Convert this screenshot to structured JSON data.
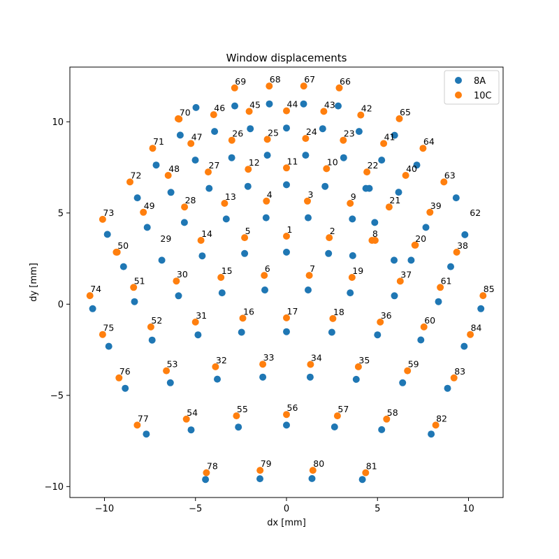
{
  "chart_data": {
    "type": "scatter",
    "title": "Window displacements",
    "xlabel": "dx [mm]",
    "ylabel": "dy [mm]",
    "xlim": [
      -11.9,
      11.9
    ],
    "ylim": [
      -10.6,
      13.0
    ],
    "xticks": [
      -10,
      -5,
      0,
      5,
      10
    ],
    "yticks": [
      -10,
      -5,
      0,
      5,
      10
    ],
    "xtick_labels": [
      "−10",
      "−5",
      "0",
      "5",
      "10"
    ],
    "ytick_labels": [
      "−10",
      "−5",
      "0",
      "5",
      "10"
    ],
    "grid": false,
    "legend_position": "top-right",
    "series": [
      {
        "name": "8A",
        "color": "#1f77b4",
        "points": [
          [
            0.0,
            2.85
          ],
          [
            2.31,
            2.78
          ],
          [
            1.19,
            4.74
          ],
          [
            -1.12,
            4.74
          ],
          [
            -2.3,
            2.78
          ],
          [
            -1.19,
            0.78
          ],
          [
            1.19,
            0.78
          ],
          [
            3.5,
            0.62
          ],
          [
            3.64,
            2.66
          ],
          [
            4.55,
            6.35
          ],
          [
            2.12,
            6.46
          ],
          [
            0.0,
            6.55
          ],
          [
            -2.12,
            6.46
          ],
          [
            -3.31,
            4.67
          ],
          [
            -4.63,
            2.65
          ],
          [
            -3.54,
            0.62
          ],
          [
            -2.47,
            -1.54
          ],
          [
            0.0,
            -1.51
          ],
          [
            2.49,
            -1.54
          ],
          [
            4.85,
            4.48
          ],
          [
            5.91,
            2.41
          ],
          [
            3.62,
            4.67
          ],
          [
            4.36,
            6.35
          ],
          [
            3.14,
            8.03
          ],
          [
            1.05,
            8.17
          ],
          [
            -1.05,
            8.17
          ],
          [
            -3.01,
            8.03
          ],
          [
            -4.25,
            6.35
          ],
          [
            -5.61,
            4.48
          ],
          [
            -5.93,
            0.46
          ],
          [
            -4.86,
            -1.68
          ],
          [
            -3.8,
            -4.11
          ],
          [
            -1.3,
            -4.0
          ],
          [
            1.3,
            -4.0
          ],
          [
            3.83,
            -4.12
          ],
          [
            5.0,
            -1.68
          ],
          [
            5.93,
            0.46
          ],
          [
            6.85,
            2.41
          ],
          [
            7.66,
            4.21
          ],
          [
            6.16,
            6.14
          ],
          [
            5.23,
            7.9
          ],
          [
            3.99,
            9.47
          ],
          [
            1.99,
            9.62
          ],
          [
            0.0,
            9.66
          ],
          [
            -1.99,
            9.62
          ],
          [
            -3.95,
            9.47
          ],
          [
            -5.84,
            9.27
          ],
          [
            -5.01,
            7.9
          ],
          [
            -6.35,
            6.13
          ],
          [
            -7.65,
            4.21
          ],
          [
            -6.85,
            2.41
          ],
          [
            -8.35,
            0.14
          ],
          [
            -7.38,
            -1.97
          ],
          [
            -6.38,
            -4.31
          ],
          [
            -5.24,
            -6.89
          ],
          [
            -2.64,
            -6.74
          ],
          [
            0.0,
            -6.63
          ],
          [
            2.64,
            -6.73
          ],
          [
            5.23,
            -6.88
          ],
          [
            6.38,
            -4.31
          ],
          [
            7.38,
            -1.96
          ],
          [
            8.35,
            0.14
          ],
          [
            9.02,
            2.06
          ],
          [
            9.32,
            5.83
          ],
          [
            7.16,
            7.63
          ],
          [
            5.94,
            9.26
          ],
          [
            2.84,
            10.87
          ],
          [
            0.94,
            10.98
          ],
          [
            -0.94,
            10.98
          ],
          [
            -2.84,
            10.87
          ],
          [
            -4.97,
            10.78
          ],
          [
            -7.16,
            7.63
          ],
          [
            -8.19,
            5.83
          ],
          [
            -9.84,
            3.83
          ],
          [
            -8.95,
            2.06
          ],
          [
            -10.65,
            -0.25
          ],
          [
            -9.76,
            -2.31
          ],
          [
            -8.86,
            -4.61
          ],
          [
            -7.7,
            -7.12
          ],
          [
            -4.45,
            -9.61
          ],
          [
            -1.46,
            -9.57
          ],
          [
            1.4,
            -9.56
          ],
          [
            4.17,
            -9.61
          ],
          [
            7.95,
            -7.12
          ],
          [
            8.85,
            -4.61
          ],
          [
            9.76,
            -2.31
          ],
          [
            10.68,
            -0.25
          ],
          [
            9.8,
            3.81
          ]
        ]
      },
      {
        "name": "10C",
        "color": "#ff7f0e",
        "points": [
          [
            0.0,
            3.73
          ],
          [
            2.35,
            3.65
          ],
          [
            1.15,
            5.65
          ],
          [
            -1.1,
            5.65
          ],
          [
            -2.3,
            3.65
          ],
          [
            -1.22,
            1.58
          ],
          [
            1.25,
            1.58
          ],
          [
            3.6,
            1.47
          ],
          [
            4.7,
            3.5
          ],
          [
            3.5,
            5.53
          ],
          [
            2.2,
            7.43
          ],
          [
            0.0,
            7.47
          ],
          [
            -2.1,
            7.4
          ],
          [
            -3.4,
            5.53
          ],
          [
            -4.7,
            3.5
          ],
          [
            -3.6,
            1.47
          ],
          [
            -2.4,
            -0.77
          ],
          [
            0.0,
            -0.75
          ],
          [
            2.55,
            -0.79
          ],
          [
            4.87,
            3.5
          ],
          [
            7.05,
            3.24
          ],
          [
            5.64,
            5.33
          ],
          [
            4.42,
            7.25
          ],
          [
            3.12,
            8.99
          ],
          [
            1.05,
            9.09
          ],
          [
            -1.05,
            9.04
          ],
          [
            -3.0,
            8.99
          ],
          [
            -4.3,
            7.25
          ],
          [
            -5.6,
            5.33
          ],
          [
            -6.05,
            1.27
          ],
          [
            -5.0,
            -0.98
          ],
          [
            -3.9,
            -3.43
          ],
          [
            -1.3,
            -3.29
          ],
          [
            1.32,
            -3.3
          ],
          [
            3.95,
            -3.43
          ],
          [
            5.15,
            -0.98
          ],
          [
            6.25,
            1.26
          ],
          [
            7.08,
            3.24
          ],
          [
            7.88,
            5.04
          ],
          [
            6.55,
            7.06
          ],
          [
            5.34,
            8.81
          ],
          [
            4.08,
            10.37
          ],
          [
            2.05,
            10.57
          ],
          [
            0.0,
            10.6
          ],
          [
            -2.05,
            10.57
          ],
          [
            -4.0,
            10.39
          ],
          [
            -5.95,
            10.17
          ],
          [
            -5.25,
            8.81
          ],
          [
            -6.5,
            7.06
          ],
          [
            -7.86,
            5.04
          ],
          [
            -9.3,
            2.85
          ],
          [
            -8.4,
            0.92
          ],
          [
            -7.45,
            -1.25
          ],
          [
            -6.6,
            -3.65
          ],
          [
            -5.5,
            -6.3
          ],
          [
            -2.75,
            -6.12
          ],
          [
            0.0,
            -6.05
          ],
          [
            2.8,
            -6.12
          ],
          [
            5.5,
            -6.3
          ],
          [
            6.65,
            -3.65
          ],
          [
            7.55,
            -1.25
          ],
          [
            8.45,
            0.92
          ],
          [
            9.35,
            2.85
          ],
          [
            8.65,
            6.7
          ],
          [
            7.5,
            8.55
          ],
          [
            6.2,
            10.17
          ],
          [
            2.9,
            11.86
          ],
          [
            0.95,
            11.96
          ],
          [
            -0.95,
            11.96
          ],
          [
            -2.85,
            11.86
          ],
          [
            -5.9,
            10.15
          ],
          [
            -7.35,
            8.55
          ],
          [
            -8.6,
            6.7
          ],
          [
            -10.1,
            4.65
          ],
          [
            -9.35,
            2.85
          ],
          [
            -10.8,
            0.47
          ],
          [
            -10.1,
            -1.66
          ],
          [
            -9.2,
            -4.04
          ],
          [
            -8.2,
            -6.63
          ],
          [
            -4.4,
            -9.24
          ],
          [
            -1.45,
            -9.11
          ],
          [
            1.45,
            -9.11
          ],
          [
            4.35,
            -9.24
          ],
          [
            8.2,
            -6.63
          ],
          [
            9.2,
            -4.04
          ],
          [
            10.1,
            -1.66
          ],
          [
            10.8,
            0.47
          ]
        ]
      }
    ],
    "annotations": [
      {
        "text": "1",
        "x": 0.0,
        "y": 3.73
      },
      {
        "text": "2",
        "x": 2.35,
        "y": 3.65
      },
      {
        "text": "3",
        "x": 1.15,
        "y": 5.65
      },
      {
        "text": "4",
        "x": -1.1,
        "y": 5.65
      },
      {
        "text": "5",
        "x": -2.3,
        "y": 3.65
      },
      {
        "text": "6",
        "x": -1.22,
        "y": 1.58
      },
      {
        "text": "7",
        "x": 1.25,
        "y": 1.58
      },
      {
        "text": "8",
        "x": 4.7,
        "y": 3.5
      },
      {
        "text": "9",
        "x": 3.5,
        "y": 5.53
      },
      {
        "text": "10",
        "x": 2.2,
        "y": 7.43
      },
      {
        "text": "11",
        "x": 0.0,
        "y": 7.47
      },
      {
        "text": "12",
        "x": -2.1,
        "y": 7.4
      },
      {
        "text": "13",
        "x": -3.4,
        "y": 5.53
      },
      {
        "text": "14",
        "x": -4.7,
        "y": 3.5
      },
      {
        "text": "15",
        "x": -3.6,
        "y": 1.47
      },
      {
        "text": "16",
        "x": -2.4,
        "y": -0.77
      },
      {
        "text": "17",
        "x": 0.0,
        "y": -0.75
      },
      {
        "text": "18",
        "x": 2.55,
        "y": -0.79
      },
      {
        "text": "19",
        "x": 3.6,
        "y": 1.47
      },
      {
        "text": "20",
        "x": 7.05,
        "y": 3.24
      },
      {
        "text": "21",
        "x": 5.64,
        "y": 5.33
      },
      {
        "text": "22",
        "x": 4.42,
        "y": 7.25
      },
      {
        "text": "23",
        "x": 3.12,
        "y": 8.99
      },
      {
        "text": "24",
        "x": 1.05,
        "y": 9.09
      },
      {
        "text": "25",
        "x": -1.05,
        "y": 9.04
      },
      {
        "text": "26",
        "x": -3.0,
        "y": 8.99
      },
      {
        "text": "27",
        "x": -4.3,
        "y": 7.25
      },
      {
        "text": "28",
        "x": -5.6,
        "y": 5.33
      },
      {
        "text": "29",
        "x": -6.95,
        "y": 3.24
      },
      {
        "text": "30",
        "x": -6.05,
        "y": 1.27
      },
      {
        "text": "31",
        "x": -5.0,
        "y": -0.98
      },
      {
        "text": "32",
        "x": -3.9,
        "y": -3.43
      },
      {
        "text": "33",
        "x": -1.3,
        "y": -3.29
      },
      {
        "text": "34",
        "x": 1.32,
        "y": -3.3
      },
      {
        "text": "35",
        "x": 3.95,
        "y": -3.43
      },
      {
        "text": "36",
        "x": 5.15,
        "y": -0.98
      },
      {
        "text": "37",
        "x": 6.25,
        "y": 1.26
      },
      {
        "text": "38",
        "x": 9.35,
        "y": 2.85
      },
      {
        "text": "39",
        "x": 7.88,
        "y": 5.04
      },
      {
        "text": "40",
        "x": 6.55,
        "y": 7.06
      },
      {
        "text": "41",
        "x": 5.34,
        "y": 8.81
      },
      {
        "text": "42",
        "x": 4.08,
        "y": 10.37
      },
      {
        "text": "43",
        "x": 2.05,
        "y": 10.57
      },
      {
        "text": "44",
        "x": 0.0,
        "y": 10.6
      },
      {
        "text": "45",
        "x": -2.05,
        "y": 10.57
      },
      {
        "text": "46",
        "x": -4.0,
        "y": 10.39
      },
      {
        "text": "47",
        "x": -5.25,
        "y": 8.81
      },
      {
        "text": "48",
        "x": -6.5,
        "y": 7.06
      },
      {
        "text": "49",
        "x": -7.86,
        "y": 5.04
      },
      {
        "text": "50",
        "x": -9.3,
        "y": 2.85
      },
      {
        "text": "51",
        "x": -8.4,
        "y": 0.92
      },
      {
        "text": "52",
        "x": -7.45,
        "y": -1.25
      },
      {
        "text": "53",
        "x": -6.6,
        "y": -3.65
      },
      {
        "text": "54",
        "x": -5.5,
        "y": -6.3
      },
      {
        "text": "55",
        "x": -2.75,
        "y": -6.12
      },
      {
        "text": "56",
        "x": 0.0,
        "y": -6.05
      },
      {
        "text": "57",
        "x": 2.8,
        "y": -6.12
      },
      {
        "text": "58",
        "x": 5.5,
        "y": -6.3
      },
      {
        "text": "59",
        "x": 6.65,
        "y": -3.65
      },
      {
        "text": "60",
        "x": 7.55,
        "y": -1.25
      },
      {
        "text": "61",
        "x": 8.45,
        "y": 0.92
      },
      {
        "text": "62",
        "x": 10.05,
        "y": 4.65
      },
      {
        "text": "63",
        "x": 8.65,
        "y": 6.7
      },
      {
        "text": "64",
        "x": 7.5,
        "y": 8.55
      },
      {
        "text": "65",
        "x": 6.2,
        "y": 10.17
      },
      {
        "text": "66",
        "x": 2.9,
        "y": 11.86
      },
      {
        "text": "67",
        "x": 0.95,
        "y": 11.96
      },
      {
        "text": "68",
        "x": -0.95,
        "y": 11.96
      },
      {
        "text": "69",
        "x": -2.85,
        "y": 11.86
      },
      {
        "text": "70",
        "x": -5.9,
        "y": 10.15
      },
      {
        "text": "71",
        "x": -7.35,
        "y": 8.55
      },
      {
        "text": "72",
        "x": -8.6,
        "y": 6.7
      },
      {
        "text": "73",
        "x": -10.1,
        "y": 4.65
      },
      {
        "text": "74",
        "x": -10.8,
        "y": 0.47
      },
      {
        "text": "75",
        "x": -10.1,
        "y": -1.66
      },
      {
        "text": "76",
        "x": -9.2,
        "y": -4.04
      },
      {
        "text": "77",
        "x": -8.2,
        "y": -6.63
      },
      {
        "text": "78",
        "x": -4.4,
        "y": -9.24
      },
      {
        "text": "79",
        "x": -1.45,
        "y": -9.11
      },
      {
        "text": "80",
        "x": 1.45,
        "y": -9.11
      },
      {
        "text": "81",
        "x": 4.35,
        "y": -9.24
      },
      {
        "text": "82",
        "x": 8.2,
        "y": -6.63
      },
      {
        "text": "83",
        "x": 9.2,
        "y": -4.04
      },
      {
        "text": "84",
        "x": 10.1,
        "y": -1.66
      },
      {
        "text": "85",
        "x": 10.8,
        "y": 0.47
      }
    ]
  }
}
